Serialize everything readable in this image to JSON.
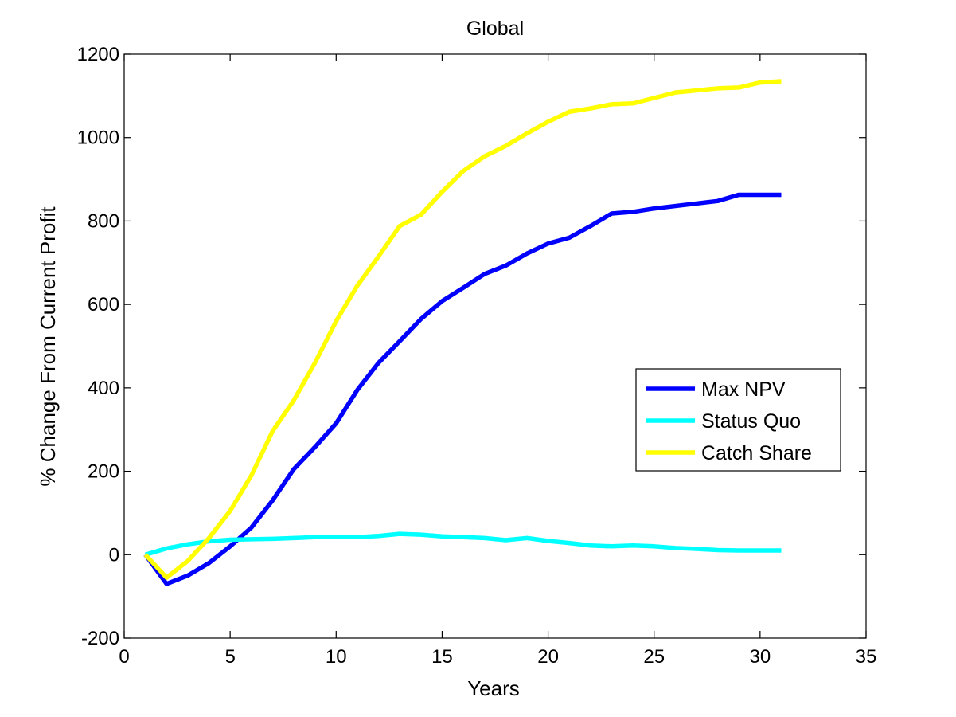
{
  "chart_data": {
    "type": "line",
    "title": "Global",
    "xlabel": "Years",
    "ylabel": "% Change From Current Profit",
    "xlim": [
      0,
      35
    ],
    "ylim": [
      -200,
      1200
    ],
    "xticks": [
      0,
      5,
      10,
      15,
      20,
      25,
      30,
      35
    ],
    "yticks": [
      -200,
      0,
      200,
      400,
      600,
      800,
      1000,
      1200
    ],
    "grid": false,
    "legend_position": "right",
    "x": [
      1,
      2,
      3,
      4,
      5,
      6,
      7,
      8,
      9,
      10,
      11,
      12,
      13,
      14,
      15,
      16,
      17,
      18,
      19,
      20,
      21,
      22,
      23,
      24,
      25,
      26,
      27,
      28,
      29,
      30,
      31
    ],
    "series": [
      {
        "name": "Max NPV",
        "color": "#0000ff",
        "values": [
          0,
          -70,
          -50,
          -20,
          20,
          65,
          130,
          205,
          258,
          315,
          395,
          460,
          512,
          565,
          608,
          640,
          673,
          693,
          722,
          746,
          760,
          788,
          818,
          822,
          830,
          836,
          842,
          848,
          863,
          863,
          863
        ]
      },
      {
        "name": "Status Quo",
        "color": "#00ffff",
        "values": [
          0,
          15,
          25,
          32,
          36,
          37,
          38,
          40,
          42,
          42,
          42,
          45,
          50,
          48,
          44,
          42,
          40,
          35,
          40,
          33,
          28,
          22,
          20,
          22,
          20,
          16,
          14,
          11,
          10,
          10,
          10
        ]
      },
      {
        "name": "Catch Share",
        "color": "#ffff00",
        "values": [
          0,
          -55,
          -15,
          40,
          105,
          190,
          296,
          370,
          460,
          560,
          645,
          715,
          788,
          815,
          870,
          920,
          955,
          980,
          1010,
          1038,
          1062,
          1070,
          1080,
          1082,
          1095,
          1108,
          1113,
          1118,
          1120,
          1132,
          1135
        ]
      }
    ]
  }
}
